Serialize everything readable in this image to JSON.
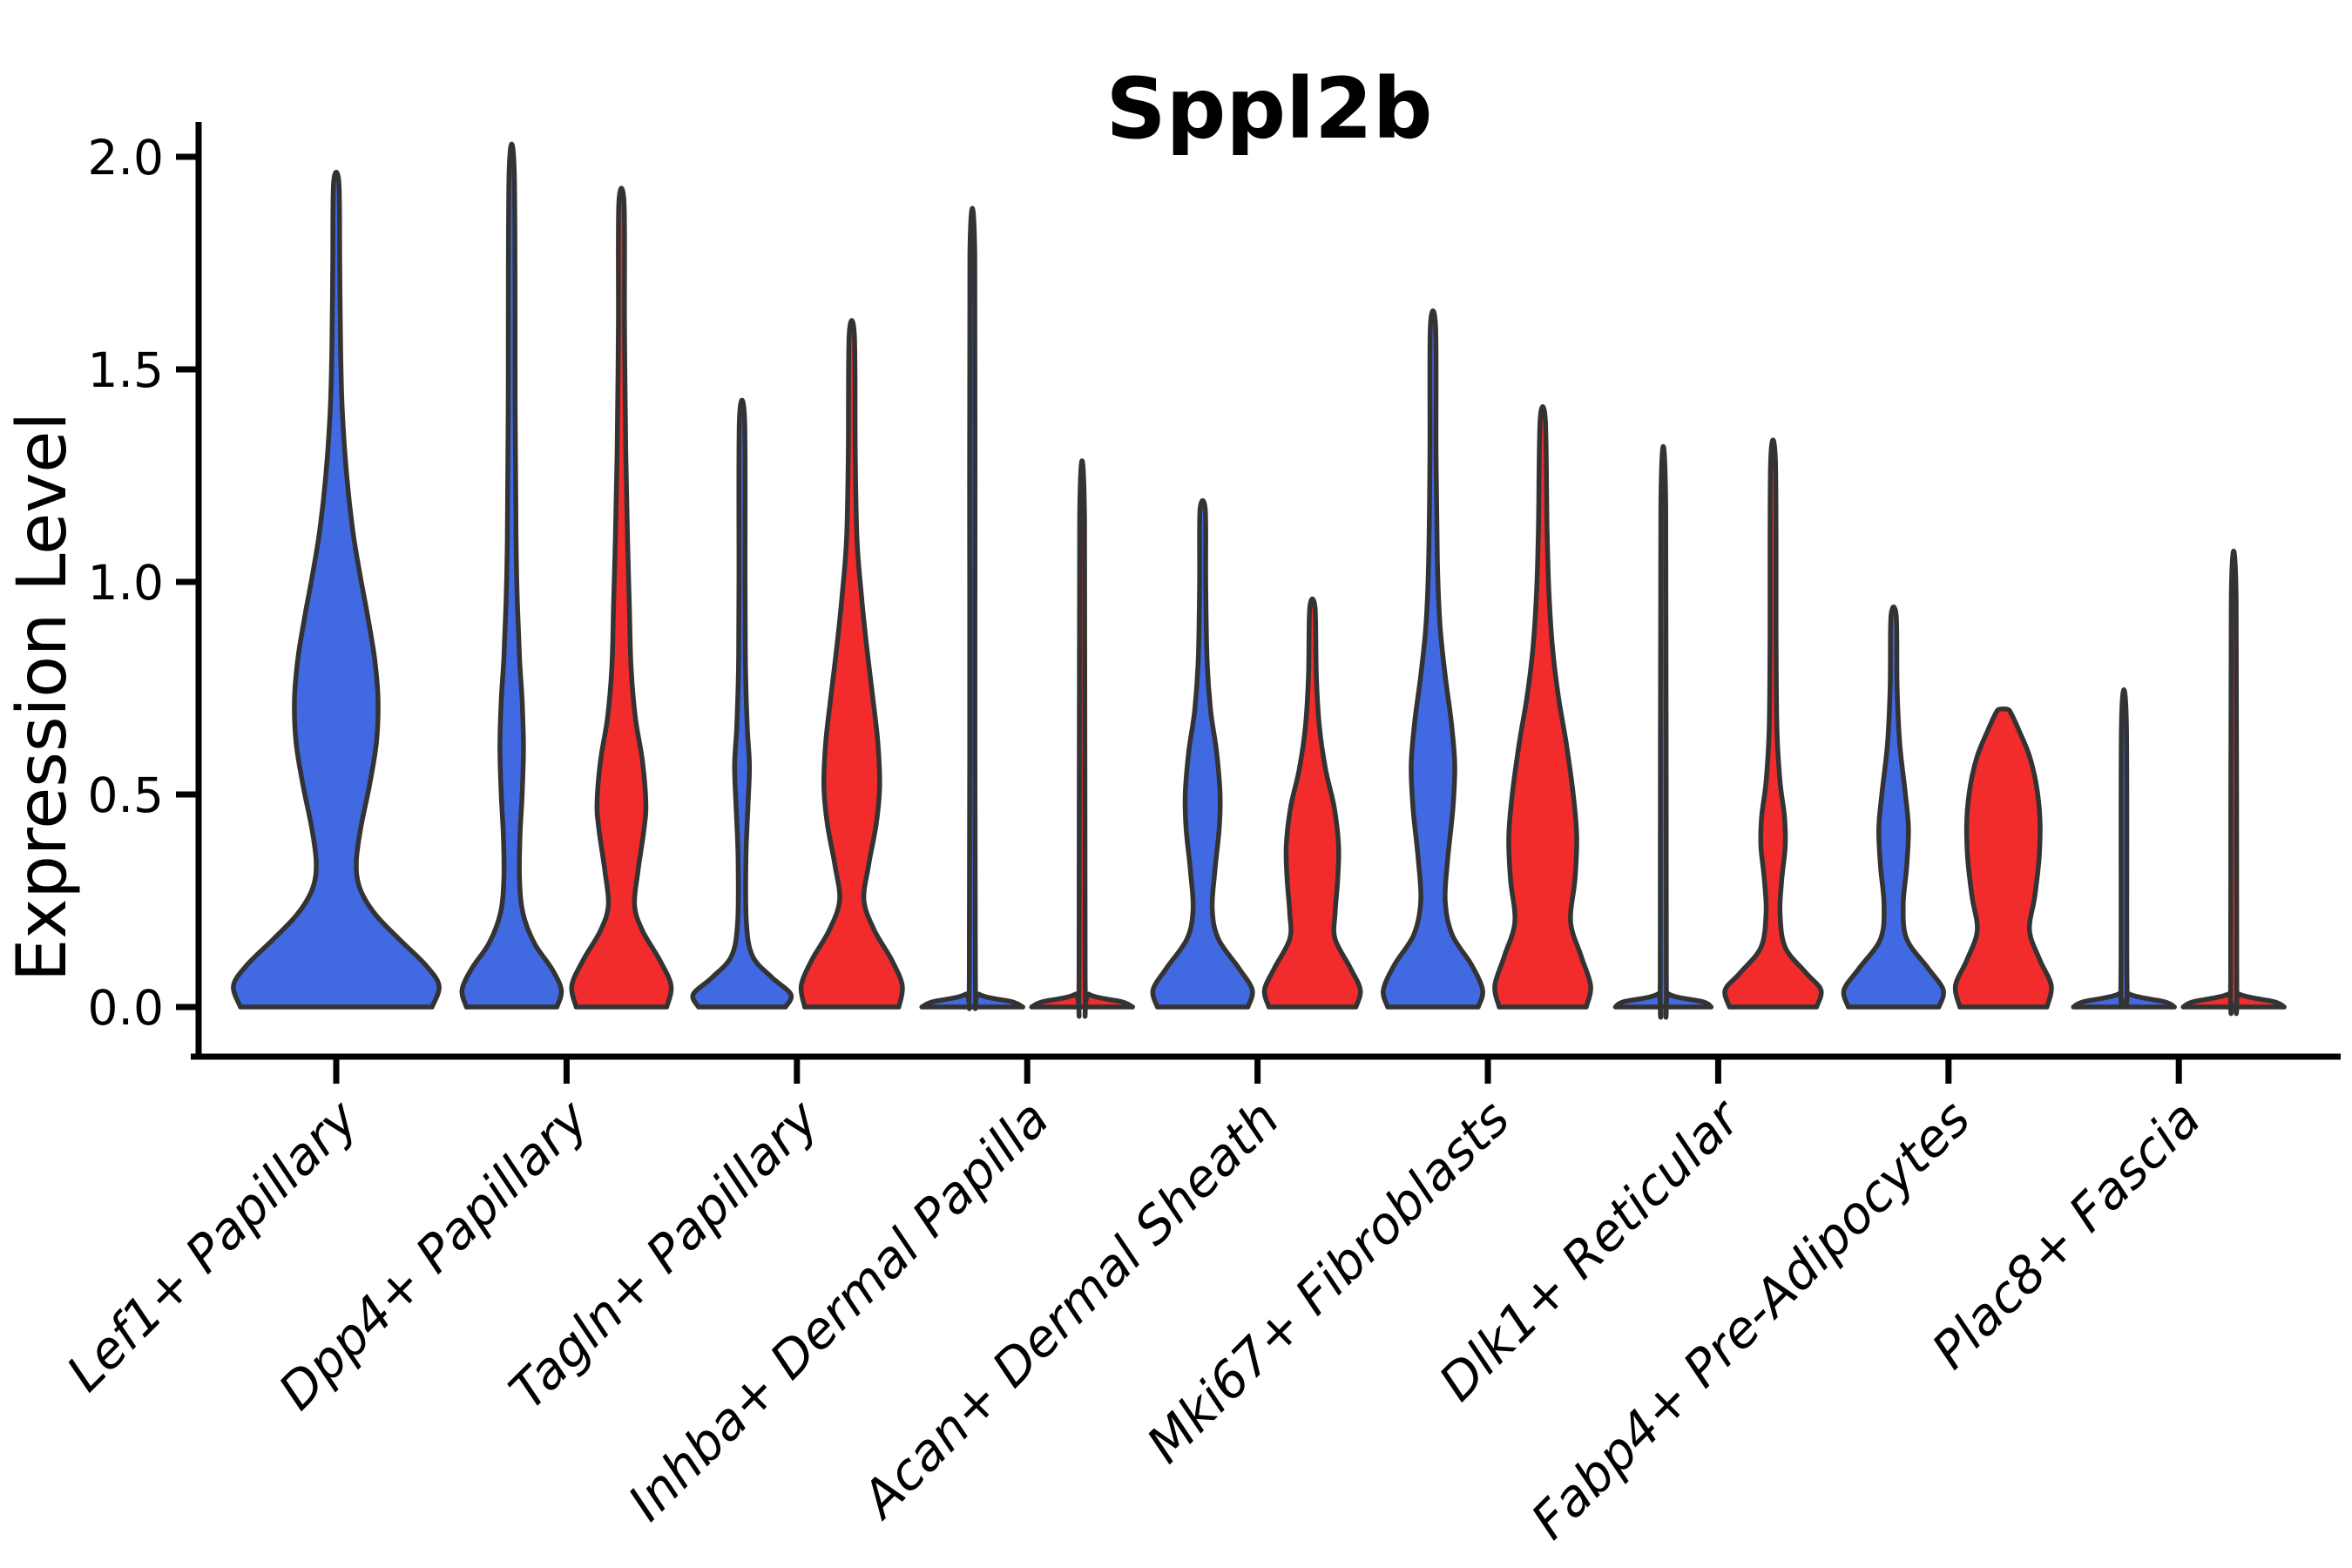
{
  "chart_data": {
    "type": "violin",
    "title": "Sppl2b",
    "ylabel": "Expression Level",
    "xlabel": "",
    "yticks": [
      "0.0",
      "0.5",
      "1.0",
      "1.5",
      "2.0"
    ],
    "ytick_values": [
      0.0,
      0.5,
      1.0,
      1.5,
      2.0
    ],
    "ylim": [
      -0.12,
      2.08
    ],
    "grid": false,
    "legend_position": "none",
    "colors": {
      "blue": "#4169E1",
      "red": "#F22C2C",
      "outline": "#333333"
    },
    "categories": [
      "Lef1+ Papillary",
      "Dpp4+ Papillary",
      "Tagln+ Papillary",
      "Inhba+ Dermal Papilla",
      "Acan+ Dermal Sheath",
      "Mki67+ Fibroblasts",
      "Dlk1+ Reticular",
      "Fabp4+ Pre-Adipocytes",
      "Plac8+ Fascia"
    ],
    "violins": [
      {
        "category": "Lef1+ Papillary",
        "group": "blue",
        "position": "center",
        "max_expression": 1.94,
        "profile": [
          [
            0,
            110
          ],
          [
            0.05,
            118
          ],
          [
            0.1,
            102
          ],
          [
            0.16,
            72
          ],
          [
            0.22,
            44
          ],
          [
            0.28,
            27
          ],
          [
            0.34,
            23
          ],
          [
            0.42,
            28
          ],
          [
            0.52,
            38
          ],
          [
            0.62,
            46
          ],
          [
            0.72,
            48
          ],
          [
            0.82,
            44
          ],
          [
            0.92,
            36
          ],
          [
            1.02,
            27
          ],
          [
            1.12,
            19
          ],
          [
            1.25,
            12
          ],
          [
            1.4,
            7
          ],
          [
            1.55,
            5
          ],
          [
            1.75,
            4
          ],
          [
            1.94,
            3
          ]
        ]
      },
      {
        "category": "Dpp4+ Papillary",
        "group": "blue",
        "position": "left",
        "max_expression": 1.96,
        "profile": [
          [
            0,
            52
          ],
          [
            0.04,
            57
          ],
          [
            0.09,
            46
          ],
          [
            0.15,
            26
          ],
          [
            0.22,
            13
          ],
          [
            0.3,
            9
          ],
          [
            0.4,
            9.5
          ],
          [
            0.5,
            12
          ],
          [
            0.61,
            13.5
          ],
          [
            0.72,
            12
          ],
          [
            0.82,
            9
          ],
          [
            0.95,
            6.5
          ],
          [
            1.1,
            5
          ],
          [
            1.4,
            4
          ],
          [
            1.96,
            3
          ]
        ]
      },
      {
        "category": "Dpp4+ Papillary",
        "group": "red",
        "position": "right",
        "max_expression": 1.89,
        "profile": [
          [
            0,
            52
          ],
          [
            0.05,
            57
          ],
          [
            0.11,
            44
          ],
          [
            0.18,
            24
          ],
          [
            0.24,
            15
          ],
          [
            0.32,
            19
          ],
          [
            0.42,
            26
          ],
          [
            0.48,
            28
          ],
          [
            0.58,
            24
          ],
          [
            0.68,
            16
          ],
          [
            0.8,
            11
          ],
          [
            0.95,
            9
          ],
          [
            1.1,
            7
          ],
          [
            1.3,
            5
          ],
          [
            1.6,
            3.5
          ],
          [
            1.89,
            3
          ]
        ]
      },
      {
        "category": "Tagln+ Papillary",
        "group": "blue",
        "position": "left",
        "max_expression": 1.38,
        "profile": [
          [
            0,
            50
          ],
          [
            0.03,
            56
          ],
          [
            0.07,
            34
          ],
          [
            0.12,
            12
          ],
          [
            0.2,
            5
          ],
          [
            0.35,
            4.5
          ],
          [
            0.48,
            7
          ],
          [
            0.57,
            8.5
          ],
          [
            0.66,
            6
          ],
          [
            0.8,
            4
          ],
          [
            1.0,
            3.5
          ],
          [
            1.38,
            3
          ]
        ]
      },
      {
        "category": "Tagln+ Papillary",
        "group": "red",
        "position": "right",
        "max_expression": 1.58,
        "profile": [
          [
            0,
            54
          ],
          [
            0.05,
            58
          ],
          [
            0.11,
            46
          ],
          [
            0.18,
            26
          ],
          [
            0.25,
            14
          ],
          [
            0.33,
            19
          ],
          [
            0.43,
            28
          ],
          [
            0.52,
            32
          ],
          [
            0.62,
            30
          ],
          [
            0.73,
            24
          ],
          [
            0.85,
            17
          ],
          [
            0.97,
            11
          ],
          [
            1.1,
            6
          ],
          [
            1.3,
            4
          ],
          [
            1.58,
            3
          ]
        ]
      },
      {
        "category": "Inhba+ Dermal Papilla",
        "group": "blue",
        "position": "left",
        "max_expression": 1.77,
        "profile": [
          [
            0,
            58
          ],
          [
            0.012,
            46
          ],
          [
            0.03,
            8
          ],
          [
            0.07,
            3.5
          ],
          [
            0.9,
            3
          ],
          [
            1.77,
            2.8
          ]
        ]
      },
      {
        "category": "Inhba+ Dermal Papilla",
        "group": "red",
        "position": "right",
        "max_expression": 1.15,
        "profile": [
          [
            0,
            58
          ],
          [
            0.012,
            46
          ],
          [
            0.03,
            8
          ],
          [
            0.07,
            3.5
          ],
          [
            1.15,
            2.8
          ]
        ]
      },
      {
        "category": "Acan+ Dermal Sheath",
        "group": "blue",
        "position": "left",
        "max_expression": 1.17,
        "profile": [
          [
            0,
            52
          ],
          [
            0.04,
            57
          ],
          [
            0.09,
            42
          ],
          [
            0.16,
            18
          ],
          [
            0.23,
            11
          ],
          [
            0.32,
            14
          ],
          [
            0.42,
            19
          ],
          [
            0.5,
            20
          ],
          [
            0.6,
            16
          ],
          [
            0.7,
            9
          ],
          [
            0.82,
            5
          ],
          [
            1.0,
            3.5
          ],
          [
            1.17,
            3
          ]
        ]
      },
      {
        "category": "Acan+ Dermal Sheath",
        "group": "red",
        "position": "right",
        "max_expression": 0.94,
        "profile": [
          [
            0,
            50
          ],
          [
            0.04,
            55
          ],
          [
            0.09,
            44
          ],
          [
            0.16,
            26
          ],
          [
            0.22,
            26
          ],
          [
            0.3,
            29
          ],
          [
            0.38,
            30
          ],
          [
            0.47,
            25
          ],
          [
            0.56,
            15
          ],
          [
            0.66,
            8
          ],
          [
            0.78,
            4.5
          ],
          [
            0.94,
            3
          ]
        ]
      },
      {
        "category": "Mki67+ Fibroblasts",
        "group": "blue",
        "position": "left",
        "max_expression": 1.6,
        "profile": [
          [
            0,
            52
          ],
          [
            0.04,
            57
          ],
          [
            0.1,
            44
          ],
          [
            0.17,
            22
          ],
          [
            0.25,
            14
          ],
          [
            0.35,
            17
          ],
          [
            0.47,
            23
          ],
          [
            0.57,
            25
          ],
          [
            0.67,
            21
          ],
          [
            0.78,
            14
          ],
          [
            0.9,
            8
          ],
          [
            1.05,
            5
          ],
          [
            1.3,
            3.5
          ],
          [
            1.6,
            3
          ]
        ]
      },
      {
        "category": "Mki67+ Fibroblasts",
        "group": "red",
        "position": "right",
        "max_expression": 1.38,
        "profile": [
          [
            0,
            50
          ],
          [
            0.05,
            55
          ],
          [
            0.12,
            44
          ],
          [
            0.2,
            32
          ],
          [
            0.3,
            37
          ],
          [
            0.4,
            39
          ],
          [
            0.5,
            35
          ],
          [
            0.62,
            27
          ],
          [
            0.73,
            18
          ],
          [
            0.85,
            11
          ],
          [
            0.98,
            7
          ],
          [
            1.12,
            5
          ],
          [
            1.38,
            3
          ]
        ]
      },
      {
        "category": "Dlk1+ Reticular",
        "group": "blue",
        "position": "left",
        "max_expression": 1.18,
        "profile": [
          [
            0,
            55
          ],
          [
            0.012,
            46
          ],
          [
            0.03,
            7
          ],
          [
            0.07,
            3.5
          ],
          [
            1.18,
            2.8
          ]
        ]
      },
      {
        "category": "Dlk1+ Reticular",
        "group": "red",
        "position": "right",
        "max_expression": 1.28,
        "profile": [
          [
            0,
            50
          ],
          [
            0.04,
            55
          ],
          [
            0.08,
            38
          ],
          [
            0.14,
            14
          ],
          [
            0.22,
            8
          ],
          [
            0.3,
            10
          ],
          [
            0.38,
            14
          ],
          [
            0.45,
            13
          ],
          [
            0.53,
            8
          ],
          [
            0.65,
            4.5
          ],
          [
            0.85,
            3.5
          ],
          [
            1.28,
            2.8
          ]
        ]
      },
      {
        "category": "Fabp4+ Pre-Adipocytes",
        "group": "blue",
        "position": "left",
        "max_expression": 0.92,
        "profile": [
          [
            0,
            52
          ],
          [
            0.04,
            57
          ],
          [
            0.09,
            40
          ],
          [
            0.16,
            15
          ],
          [
            0.24,
            11
          ],
          [
            0.33,
            15
          ],
          [
            0.42,
            17
          ],
          [
            0.51,
            13
          ],
          [
            0.62,
            7
          ],
          [
            0.75,
            4
          ],
          [
            0.92,
            3
          ]
        ]
      },
      {
        "category": "Fabp4+ Pre-Adipocytes",
        "group": "red",
        "position": "right",
        "max_expression": 0.7,
        "profile": [
          [
            0,
            50
          ],
          [
            0.05,
            55
          ],
          [
            0.11,
            42
          ],
          [
            0.18,
            30
          ],
          [
            0.26,
            36
          ],
          [
            0.35,
            41
          ],
          [
            0.44,
            42
          ],
          [
            0.52,
            38
          ],
          [
            0.59,
            30
          ],
          [
            0.65,
            18
          ],
          [
            0.69,
            9
          ],
          [
            0.7,
            5
          ]
        ]
      },
      {
        "category": "Plac8+ Fascia",
        "group": "blue",
        "position": "left",
        "max_expression": 0.67,
        "profile": [
          [
            0,
            58
          ],
          [
            0.012,
            47
          ],
          [
            0.03,
            7
          ],
          [
            0.06,
            3.5
          ],
          [
            0.67,
            2.8
          ]
        ]
      },
      {
        "category": "Plac8+ Fascia",
        "group": "red",
        "position": "right",
        "max_expression": 0.96,
        "profile": [
          [
            0,
            58
          ],
          [
            0.012,
            47
          ],
          [
            0.03,
            7
          ],
          [
            0.06,
            3.5
          ],
          [
            0.96,
            2.8
          ]
        ]
      }
    ]
  }
}
